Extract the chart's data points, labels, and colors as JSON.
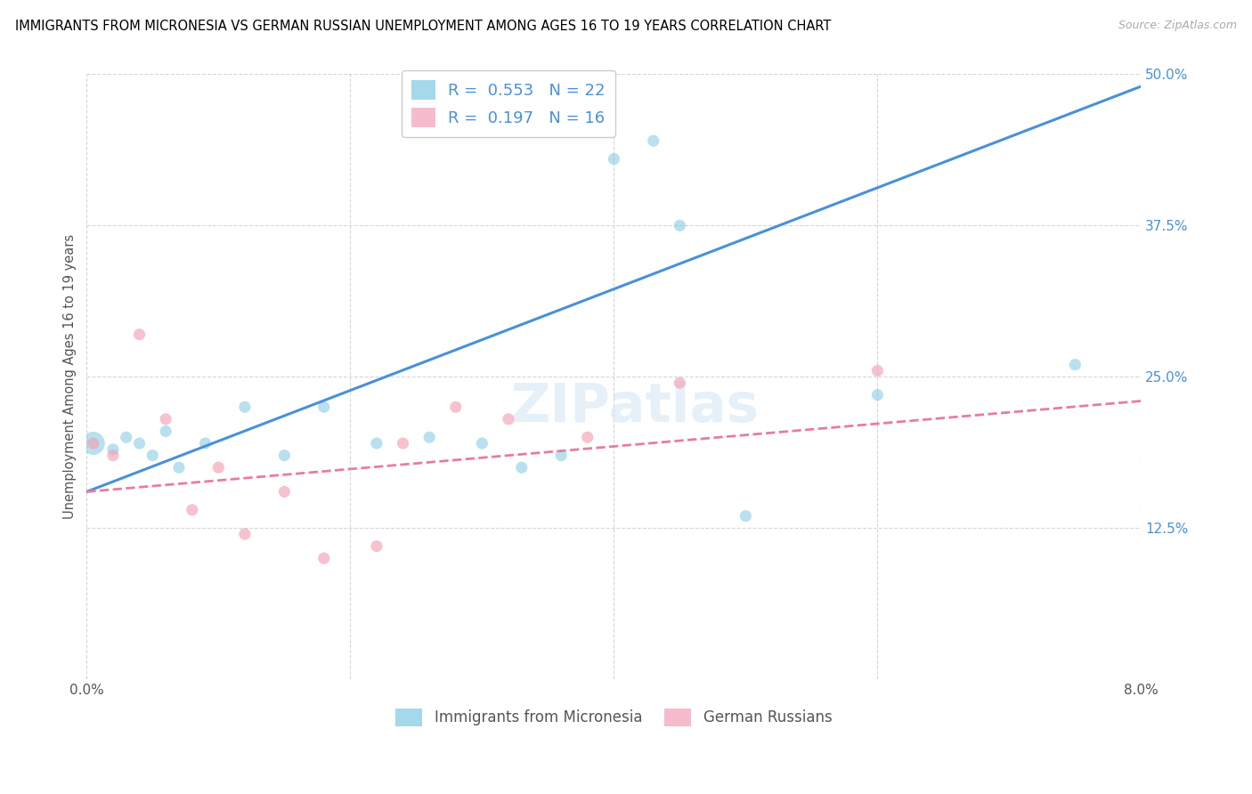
{
  "title": "IMMIGRANTS FROM MICRONESIA VS GERMAN RUSSIAN UNEMPLOYMENT AMONG AGES 16 TO 19 YEARS CORRELATION CHART",
  "source": "Source: ZipAtlas.com",
  "ylabel": "Unemployment Among Ages 16 to 19 years",
  "xlim": [
    0.0,
    0.08
  ],
  "ylim": [
    0.0,
    0.5
  ],
  "legend_label1": "Immigrants from Micronesia",
  "legend_label2": "German Russians",
  "blue_color": "#7ec8e3",
  "pink_color": "#f4a0b5",
  "line_blue": "#4a90d9",
  "line_pink": "#e87ca0",
  "micronesia_x": [
    0.0005,
    0.002,
    0.003,
    0.004,
    0.005,
    0.006,
    0.007,
    0.009,
    0.012,
    0.015,
    0.018,
    0.022,
    0.026,
    0.03,
    0.033,
    0.036,
    0.04,
    0.043,
    0.045,
    0.05,
    0.06,
    0.075
  ],
  "micronesia_y": [
    0.195,
    0.19,
    0.2,
    0.195,
    0.185,
    0.205,
    0.175,
    0.195,
    0.225,
    0.185,
    0.225,
    0.195,
    0.2,
    0.195,
    0.175,
    0.185,
    0.43,
    0.445,
    0.375,
    0.135,
    0.235,
    0.26
  ],
  "micronesia_s": [
    350,
    90,
    90,
    90,
    90,
    90,
    90,
    90,
    90,
    90,
    90,
    90,
    90,
    90,
    90,
    90,
    90,
    90,
    90,
    90,
    90,
    90
  ],
  "german_x": [
    0.0005,
    0.002,
    0.004,
    0.006,
    0.008,
    0.01,
    0.012,
    0.015,
    0.018,
    0.022,
    0.024,
    0.028,
    0.032,
    0.038,
    0.045,
    0.06
  ],
  "german_y": [
    0.195,
    0.185,
    0.285,
    0.215,
    0.14,
    0.175,
    0.12,
    0.155,
    0.1,
    0.11,
    0.195,
    0.225,
    0.215,
    0.2,
    0.245,
    0.255
  ],
  "german_s": [
    90,
    90,
    90,
    90,
    90,
    90,
    90,
    90,
    90,
    90,
    90,
    90,
    90,
    90,
    90,
    90
  ],
  "blue_line_x": [
    0.0,
    0.08
  ],
  "blue_line_y": [
    0.155,
    0.49
  ],
  "pink_line_x": [
    0.0,
    0.08
  ],
  "pink_line_y": [
    0.155,
    0.23
  ]
}
